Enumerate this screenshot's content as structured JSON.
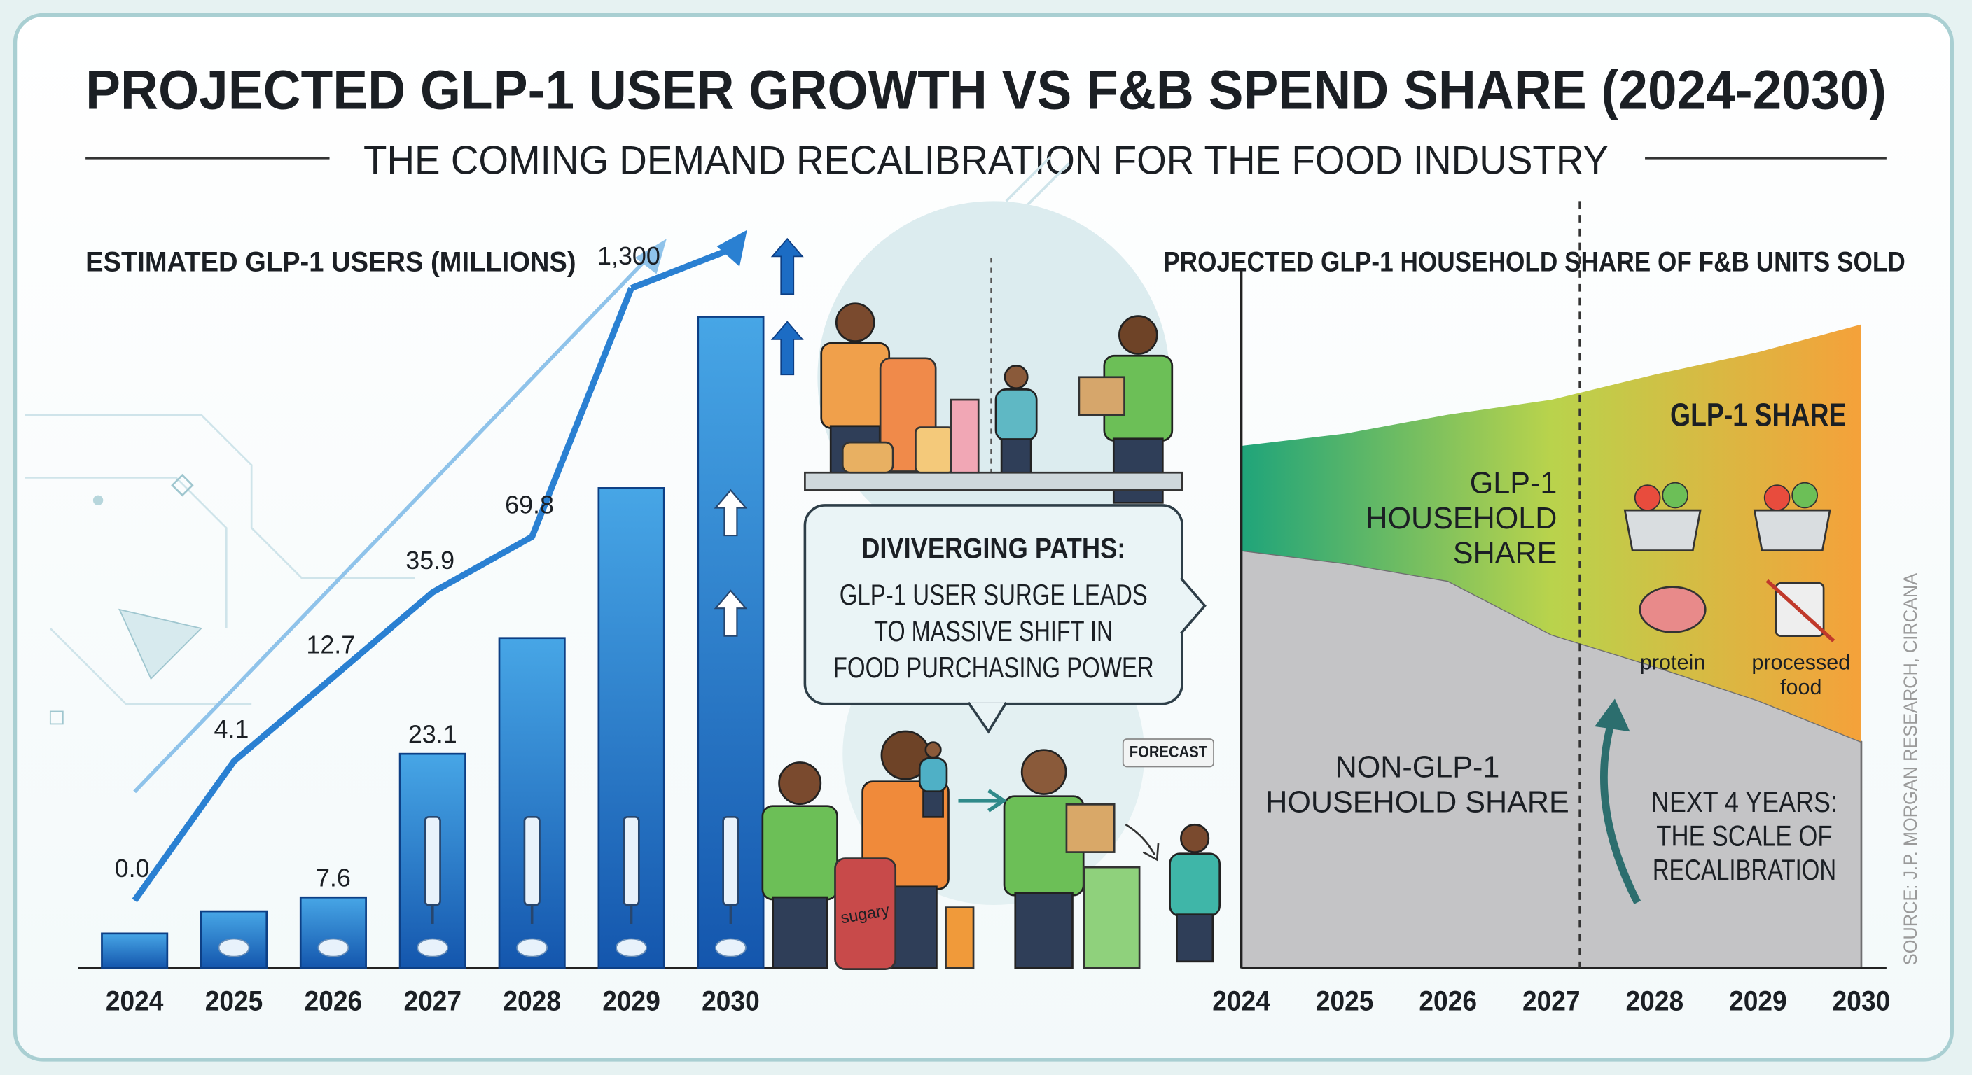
{
  "title": "PROJECTED GLP-1 USER GROWTH VS F&B SPEND SHARE (2024-2030)",
  "subtitle": "THE COMING DEMAND RECALIBRATION FOR THE FOOD INDUSTRY",
  "source": "SOURCE: J.P. MORGAN RESEARCH, CIRCANA",
  "callout": {
    "heading": "DIVIVERGING PATHS:",
    "lines": [
      "GLP-1 USER SURGE LEADS",
      "TO MASSIVE SHIFT IN",
      "FOOD PURCHASING POWER"
    ]
  },
  "illustration": {
    "jar_label": "sugary",
    "badge": "FORECAST"
  },
  "chart_data": [
    {
      "type": "bar",
      "title": "ESTIMATED GLP-1 USERS (MILLIONS)",
      "categories": [
        "2024",
        "2025",
        "2026",
        "2027",
        "2028",
        "2029",
        "2030"
      ],
      "ylim": [
        0,
        76
      ],
      "y2lim": [
        -1.2,
        2000
      ],
      "y2scale": "symlog",
      "series": [
        {
          "type": "bar",
          "color": [
            "#47a6e6",
            "#1456ad"
          ],
          "values": [
            3.7,
            6.1,
            7.6,
            23.1,
            35.6,
            51.8,
            70.3
          ],
          "value_labels": [
            null,
            null,
            "7.6",
            "23.1",
            null,
            null,
            null
          ]
        },
        {
          "type": "line",
          "axis": "y2",
          "color": "#2a80d2",
          "values": [
            0,
            4.1,
            12.7,
            35.9,
            69.8,
            1300,
            null
          ],
          "value_labels": [
            "0.0",
            "4.1",
            "12.7",
            "35.9",
            "69.8",
            "1,300",
            null
          ]
        }
      ]
    },
    {
      "type": "area",
      "stacked": true,
      "title": "PROJECTED GLP-1 HOUSEHOLD SHARE OF F&B UNITS SOLD",
      "categories": [
        "2024",
        "2025",
        "2026",
        "2027",
        "2028",
        "2029",
        "2030"
      ],
      "ylim": [
        0,
        100
      ],
      "series": [
        {
          "color": "#c4c4c6",
          "values": [
            61.5,
            59.6,
            57.0,
            49.1,
            44.4,
            39.4,
            33.3
          ]
        },
        {
          "color": [
            "#1fa47a",
            "#b9d34c",
            "#f5a13a"
          ],
          "values": [
            15.4,
            19.1,
            24.5,
            34.6,
            43.0,
            51.3,
            61.5
          ]
        }
      ],
      "annotations": {
        "glp1_area": [
          "GLP-1",
          "HOUSEHOLD",
          "SHARE"
        ],
        "non_glp1_area": [
          "NON-GLP-1",
          "HOUSEHOLD SHARE"
        ],
        "panel_title": "GLP-1 SHARE",
        "protein": "protein",
        "processed": [
          "processed",
          "food"
        ],
        "note": [
          "NEXT 4 YEARS:",
          "THE SCALE OF",
          "RECALIBRATION"
        ]
      }
    }
  ]
}
